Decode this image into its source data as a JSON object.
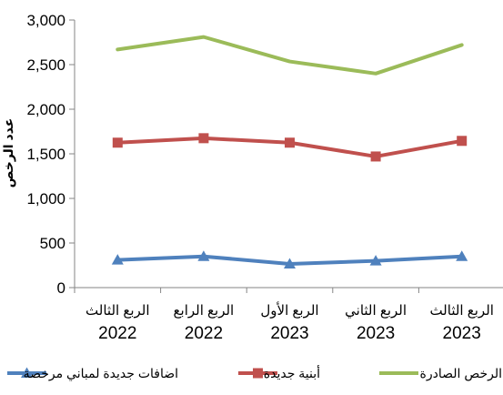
{
  "chart_data": {
    "type": "line",
    "title": "",
    "xlabel": "",
    "ylabel": "عدد الرخص",
    "ylim": [
      0,
      3000
    ],
    "y_ticks": [
      "3,000",
      "2,500",
      "2,000",
      "1,500",
      "1,000",
      "500",
      "0"
    ],
    "grid": false,
    "legend_position": "bottom",
    "categories": [
      {
        "line1": "الربع الثالث",
        "line2": "2022"
      },
      {
        "line1": "الربع الرابع",
        "line2": "2022"
      },
      {
        "line1": "الربع الأول",
        "line2": "2023"
      },
      {
        "line1": "الربع الثاني",
        "line2": "2023"
      },
      {
        "line1": "الربع الثالث",
        "line2": "2023"
      }
    ],
    "series": [
      {
        "name": "الرخص الصادرة",
        "color": "#9BBB59",
        "marker": "none",
        "values": [
          2670,
          2810,
          2535,
          2400,
          2720
        ]
      },
      {
        "name": "أبنية جديدة",
        "color": "#C0504D",
        "marker": "square",
        "values": [
          1625,
          1675,
          1625,
          1470,
          1645
        ]
      },
      {
        "name": "اضافات جديدة لمباني مرخصة",
        "color": "#4F81BD",
        "marker": "triangle",
        "values": [
          310,
          350,
          265,
          300,
          350
        ]
      }
    ]
  }
}
